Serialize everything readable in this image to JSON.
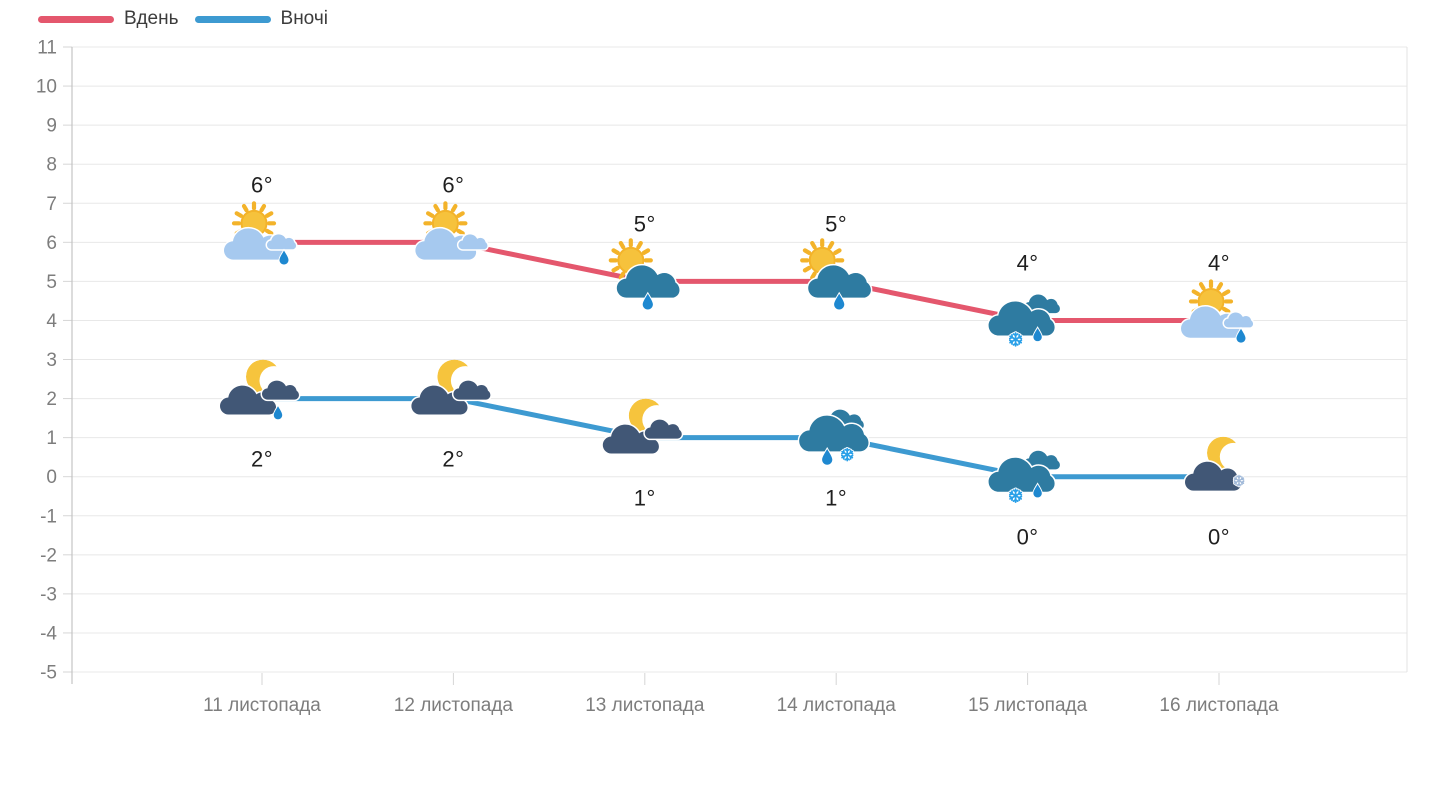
{
  "legend": {
    "day_label": "Вдень",
    "night_label": "Вночі"
  },
  "colors": {
    "day_line": "#e4576d",
    "night_line": "#3d9ad1",
    "grid_line": "#e8e8e8",
    "axis_line": "#c4c4c4",
    "right_border": "#e3e3e3",
    "tick_mark": "#d6d6d6",
    "tick_text": "#7d7d7d",
    "temp_text": "#1f1f1f",
    "legend_text": "#3c3c3c",
    "sun": "#f6c23c",
    "sun_rays": "#f3b32a",
    "moon": "#f6c43d",
    "cloud_light": "#a6c9ef",
    "cloud_dark": "#415776",
    "cloud_teal": "#2e7ba1",
    "rain_drop": "#1e88d0",
    "snowflake": "#2aa0e8",
    "snowflake_pale": "#9fb8d8"
  },
  "chart_data": {
    "type": "line",
    "title": "",
    "categories": [
      "11 листопада",
      "12 листопада",
      "13 листопада",
      "14 листопада",
      "15 листопада",
      "16 листопада"
    ],
    "ylim": [
      -5,
      11
    ],
    "yticks": [
      11,
      10,
      9,
      8,
      7,
      6,
      5,
      4,
      3,
      2,
      1,
      0,
      -1,
      -2,
      -3,
      -4,
      -5
    ],
    "grid": true,
    "legend_position": "top-left",
    "series": [
      {
        "name": "Вдень",
        "color_key": "day_line",
        "values": [
          6,
          6,
          5,
          5,
          4,
          4
        ],
        "point_labels": [
          "6°",
          "6°",
          "5°",
          "5°",
          "4°",
          "4°"
        ],
        "label_position": "above",
        "icons": [
          "sun-clouds-rain",
          "sun-clouds",
          "sun-darkcloud-rain",
          "sun-darkcloud-rain",
          "cloud-snow-rain",
          "sun-clouds-rain"
        ]
      },
      {
        "name": "Вночі",
        "color_key": "night_line",
        "values": [
          2,
          2,
          1,
          1,
          0,
          0
        ],
        "point_labels": [
          "2°",
          "2°",
          "1°",
          "1°",
          "0°",
          "0°"
        ],
        "label_position": "below",
        "icons": [
          "moon-clouds-rain",
          "moon-clouds",
          "moon-clouds",
          "cloud-rain-snow",
          "cloud-snow-rain",
          "moon-cloud-snow"
        ]
      }
    ]
  }
}
